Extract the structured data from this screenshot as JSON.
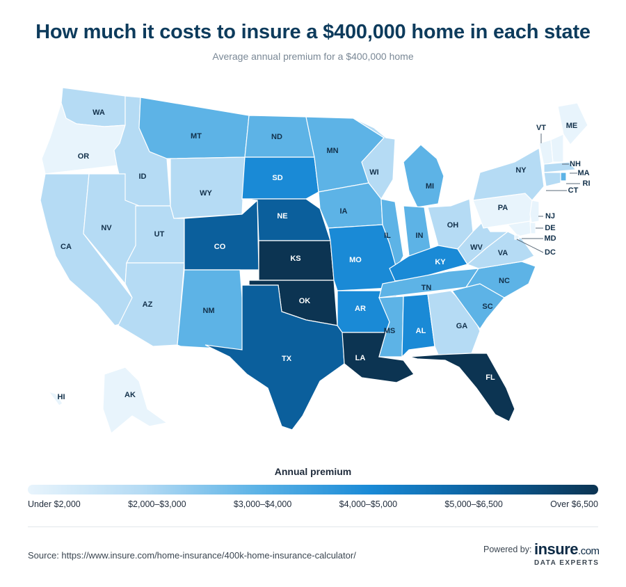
{
  "header": {
    "title": "How much it costs to insure a $400,000 home in each state",
    "subtitle": "Average annual premium for a $400,000 home"
  },
  "legend": {
    "title": "Annual premium",
    "labels": [
      "Under $2,000",
      "$2,000–$3,000",
      "$3,000–$4,000",
      "$4,000–$5,000",
      "$5,000–$6,500",
      "Over $6,500"
    ],
    "colors": [
      "#e8f4fc",
      "#b5dbf4",
      "#5db3e6",
      "#1a8ad6",
      "#0b5f9c",
      "#0c3452"
    ]
  },
  "map": {
    "states": [
      {
        "abbr": "WA",
        "tier": 1
      },
      {
        "abbr": "OR",
        "tier": 0
      },
      {
        "abbr": "CA",
        "tier": 1
      },
      {
        "abbr": "ID",
        "tier": 1
      },
      {
        "abbr": "NV",
        "tier": 1
      },
      {
        "abbr": "UT",
        "tier": 1
      },
      {
        "abbr": "AZ",
        "tier": 1
      },
      {
        "abbr": "MT",
        "tier": 2
      },
      {
        "abbr": "WY",
        "tier": 1
      },
      {
        "abbr": "CO",
        "tier": 4
      },
      {
        "abbr": "NM",
        "tier": 2
      },
      {
        "abbr": "ND",
        "tier": 2
      },
      {
        "abbr": "SD",
        "tier": 3
      },
      {
        "abbr": "NE",
        "tier": 4
      },
      {
        "abbr": "KS",
        "tier": 5
      },
      {
        "abbr": "OK",
        "tier": 5
      },
      {
        "abbr": "TX",
        "tier": 4
      },
      {
        "abbr": "MN",
        "tier": 2
      },
      {
        "abbr": "IA",
        "tier": 2
      },
      {
        "abbr": "MO",
        "tier": 3
      },
      {
        "abbr": "AR",
        "tier": 3
      },
      {
        "abbr": "LA",
        "tier": 5
      },
      {
        "abbr": "WI",
        "tier": 1
      },
      {
        "abbr": "IL",
        "tier": 2
      },
      {
        "abbr": "MI",
        "tier": 2
      },
      {
        "abbr": "IN",
        "tier": 2
      },
      {
        "abbr": "OH",
        "tier": 1
      },
      {
        "abbr": "KY",
        "tier": 3
      },
      {
        "abbr": "TN",
        "tier": 2
      },
      {
        "abbr": "MS",
        "tier": 2
      },
      {
        "abbr": "AL",
        "tier": 3
      },
      {
        "abbr": "GA",
        "tier": 1
      },
      {
        "abbr": "FL",
        "tier": 5
      },
      {
        "abbr": "SC",
        "tier": 2
      },
      {
        "abbr": "NC",
        "tier": 2
      },
      {
        "abbr": "VA",
        "tier": 1
      },
      {
        "abbr": "WV",
        "tier": 1
      },
      {
        "abbr": "PA",
        "tier": 0
      },
      {
        "abbr": "NY",
        "tier": 1
      },
      {
        "abbr": "ME",
        "tier": 0
      },
      {
        "abbr": "VT",
        "tier": 0
      },
      {
        "abbr": "NH",
        "tier": 0
      },
      {
        "abbr": "MA",
        "tier": 1
      },
      {
        "abbr": "RI",
        "tier": 2
      },
      {
        "abbr": "CT",
        "tier": 1
      },
      {
        "abbr": "NJ",
        "tier": 0
      },
      {
        "abbr": "DE",
        "tier": 0
      },
      {
        "abbr": "MD",
        "tier": 0
      },
      {
        "abbr": "DC",
        "tier": 0
      },
      {
        "abbr": "AK",
        "tier": 0
      },
      {
        "abbr": "HI",
        "tier": 0
      }
    ]
  },
  "footer": {
    "source": "Source: https://www.insure.com/home-insurance/400k-home-insurance-calculator/",
    "powered_by": "Powered by:",
    "brand": "insure",
    "brand_domain": ".com",
    "brand_sub": "DATA EXPERTS"
  }
}
